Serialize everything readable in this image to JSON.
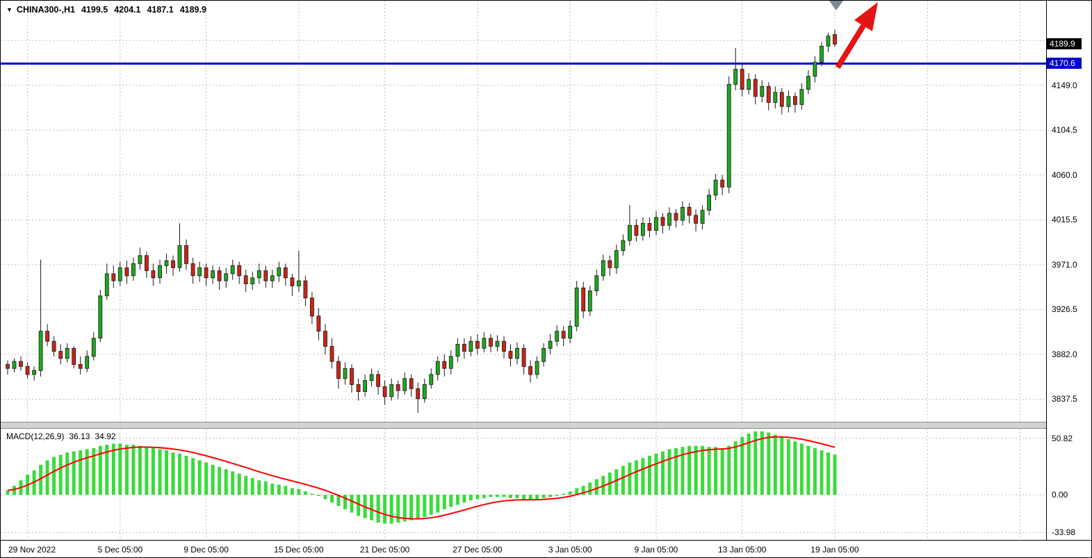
{
  "header": {
    "dropdown_icon": "▼",
    "symbol_period": "CHINA300-,H1",
    "open": "4199.5",
    "high": "4204.1",
    "low": "4187.1",
    "close": "4189.9"
  },
  "indicator_label": {
    "name": "MACD(12,26,9)",
    "macd": "36.13",
    "signal": "34.92"
  },
  "tags": {
    "current_price": "4189.9",
    "hline": "4170.6"
  },
  "colors": {
    "background": "#ffffff",
    "grid": "#bdbdbd",
    "candle_up": "#1fa81f",
    "candle_down": "#cc2418",
    "wick": "#161616",
    "macd_bar": "#3bdb3b",
    "signal_line": "#ff0000",
    "hline": "#0000cd",
    "price_tag_bg": "#000000",
    "arrow": "#e41414",
    "marker": "#7a8a99",
    "text": "#000000"
  },
  "chart_data": {
    "type": "candlestick",
    "title": "CHINA300-,H1",
    "symbol": "CHINA300-",
    "timeframe": "H1",
    "quote_ohlc": [
      4199.5,
      4204.1,
      4187.1,
      4189.9
    ],
    "current_price": 4189.9,
    "hline": 4170.6,
    "y_axis": {
      "tick_labels": [
        "4149.0",
        "4104.5",
        "4060.0",
        "4015.5",
        "3971.0",
        "3926.5",
        "3882.0",
        "3837.5"
      ],
      "tick_values": [
        4149.0,
        4104.5,
        4060.0,
        4015.5,
        3971.0,
        3926.5,
        3882.0,
        3837.5
      ],
      "extra_gridline": 4193.5
    },
    "x_axis": {
      "labels": [
        "29 Nov 2022",
        "5 Dec 05:00",
        "9 Dec 05:00",
        "15 Dec 05:00",
        "21 Dec 05:00",
        "27 Dec 05:00",
        "3 Jan 05:00",
        "9 Jan 05:00",
        "13 Jan 05:00",
        "19 Jan 05:00"
      ],
      "tick_indices": [
        3,
        17,
        30,
        44,
        57,
        71,
        85,
        98,
        111,
        125
      ],
      "extra_tick_indices": [
        139,
        153
      ]
    },
    "candles": [
      [
        3872,
        3876,
        3862,
        3868
      ],
      [
        3868,
        3878,
        3864,
        3875
      ],
      [
        3875,
        3880,
        3866,
        3870
      ],
      [
        3870,
        3874,
        3858,
        3862
      ],
      [
        3862,
        3870,
        3856,
        3866
      ],
      [
        3866,
        3976,
        3860,
        3905
      ],
      [
        3905,
        3912,
        3890,
        3895
      ],
      [
        3895,
        3900,
        3880,
        3885
      ],
      [
        3885,
        3892,
        3872,
        3878
      ],
      [
        3878,
        3893,
        3874,
        3888
      ],
      [
        3888,
        3890,
        3868,
        3872
      ],
      [
        3872,
        3880,
        3862,
        3868
      ],
      [
        3868,
        3886,
        3864,
        3880
      ],
      [
        3880,
        3904,
        3876,
        3898
      ],
      [
        3898,
        3946,
        3894,
        3940
      ],
      [
        3940,
        3972,
        3936,
        3962
      ],
      [
        3962,
        3970,
        3948,
        3955
      ],
      [
        3955,
        3974,
        3950,
        3968
      ],
      [
        3968,
        3975,
        3952,
        3960
      ],
      [
        3960,
        3978,
        3955,
        3972
      ],
      [
        3972,
        3988,
        3966,
        3980
      ],
      [
        3980,
        3984,
        3958,
        3965
      ],
      [
        3965,
        3972,
        3950,
        3958
      ],
      [
        3958,
        3976,
        3952,
        3970
      ],
      [
        3970,
        3982,
        3962,
        3975
      ],
      [
        3975,
        3980,
        3960,
        3968
      ],
      [
        3968,
        4012,
        3964,
        3990
      ],
      [
        3990,
        3996,
        3966,
        3972
      ],
      [
        3972,
        3978,
        3952,
        3960
      ],
      [
        3960,
        3974,
        3954,
        3968
      ],
      [
        3968,
        3972,
        3950,
        3958
      ],
      [
        3958,
        3970,
        3952,
        3965
      ],
      [
        3965,
        3969,
        3946,
        3955
      ],
      [
        3955,
        3968,
        3948,
        3962
      ],
      [
        3962,
        3976,
        3956,
        3970
      ],
      [
        3970,
        3974,
        3952,
        3960
      ],
      [
        3960,
        3966,
        3944,
        3952
      ],
      [
        3952,
        3964,
        3946,
        3958
      ],
      [
        3958,
        3972,
        3952,
        3965
      ],
      [
        3965,
        3970,
        3948,
        3955
      ],
      [
        3955,
        3966,
        3948,
        3960
      ],
      [
        3960,
        3974,
        3954,
        3968
      ],
      [
        3968,
        3972,
        3950,
        3958
      ],
      [
        3958,
        3962,
        3940,
        3950
      ],
      [
        3950,
        3985,
        3944,
        3955
      ],
      [
        3955,
        3960,
        3930,
        3938
      ],
      [
        3938,
        3944,
        3912,
        3920
      ],
      [
        3920,
        3928,
        3896,
        3905
      ],
      [
        3905,
        3912,
        3882,
        3890
      ],
      [
        3890,
        3898,
        3868,
        3875
      ],
      [
        3875,
        3880,
        3848,
        3858
      ],
      [
        3858,
        3874,
        3852,
        3868
      ],
      [
        3868,
        3872,
        3844,
        3852
      ],
      [
        3852,
        3858,
        3836,
        3845
      ],
      [
        3845,
        3862,
        3840,
        3856
      ],
      [
        3856,
        3868,
        3850,
        3862
      ],
      [
        3862,
        3866,
        3842,
        3850
      ],
      [
        3850,
        3856,
        3832,
        3840
      ],
      [
        3840,
        3858,
        3836,
        3852
      ],
      [
        3852,
        3856,
        3838,
        3846
      ],
      [
        3846,
        3864,
        3842,
        3858
      ],
      [
        3858,
        3862,
        3840,
        3848
      ],
      [
        3848,
        3854,
        3824,
        3838
      ],
      [
        3838,
        3858,
        3834,
        3852
      ],
      [
        3852,
        3868,
        3848,
        3862
      ],
      [
        3862,
        3880,
        3856,
        3875
      ],
      [
        3875,
        3882,
        3860,
        3868
      ],
      [
        3868,
        3886,
        3862,
        3880
      ],
      [
        3880,
        3898,
        3874,
        3892
      ],
      [
        3892,
        3898,
        3878,
        3885
      ],
      [
        3885,
        3900,
        3880,
        3895
      ],
      [
        3895,
        3902,
        3882,
        3888
      ],
      [
        3888,
        3904,
        3884,
        3898
      ],
      [
        3898,
        3902,
        3884,
        3890
      ],
      [
        3890,
        3901,
        3885,
        3895
      ],
      [
        3895,
        3900,
        3878,
        3885
      ],
      [
        3885,
        3892,
        3870,
        3878
      ],
      [
        3878,
        3894,
        3872,
        3888
      ],
      [
        3888,
        3892,
        3862,
        3870
      ],
      [
        3870,
        3876,
        3854,
        3862
      ],
      [
        3862,
        3880,
        3858,
        3875
      ],
      [
        3875,
        3893,
        3870,
        3888
      ],
      [
        3888,
        3902,
        3882,
        3895
      ],
      [
        3895,
        3911,
        3890,
        3905
      ],
      [
        3905,
        3910,
        3890,
        3898
      ],
      [
        3898,
        3916,
        3893,
        3910
      ],
      [
        3910,
        3955,
        3905,
        3948
      ],
      [
        3948,
        3954,
        3918,
        3925
      ],
      [
        3925,
        3950,
        3920,
        3945
      ],
      [
        3945,
        3966,
        3940,
        3960
      ],
      [
        3960,
        3981,
        3955,
        3975
      ],
      [
        3975,
        3980,
        3960,
        3968
      ],
      [
        3968,
        3991,
        3962,
        3985
      ],
      [
        3985,
        4001,
        3980,
        3995
      ],
      [
        3995,
        4030,
        3990,
        4010
      ],
      [
        4010,
        4016,
        3994,
        4000
      ],
      [
        4000,
        4018,
        3995,
        4012
      ],
      [
        4012,
        4018,
        3998,
        4005
      ],
      [
        4005,
        4024,
        4000,
        4018
      ],
      [
        4018,
        4022,
        4002,
        4010
      ],
      [
        4010,
        4028,
        4005,
        4022
      ],
      [
        4022,
        4026,
        4008,
        4015
      ],
      [
        4015,
        4034,
        4010,
        4028
      ],
      [
        4028,
        4032,
        4012,
        4020
      ],
      [
        4020,
        4026,
        4004,
        4012
      ],
      [
        4012,
        4030,
        4006,
        4025
      ],
      [
        4025,
        4046,
        4020,
        4040
      ],
      [
        4040,
        4061,
        4035,
        4055
      ],
      [
        4055,
        4060,
        4040,
        4048
      ],
      [
        4048,
        4158,
        4042,
        4150
      ],
      [
        4150,
        4186,
        4144,
        4165
      ],
      [
        4165,
        4170,
        4138,
        4145
      ],
      [
        4145,
        4161,
        4140,
        4155
      ],
      [
        4155,
        4160,
        4130,
        4138
      ],
      [
        4138,
        4154,
        4132,
        4148
      ],
      [
        4148,
        4152,
        4124,
        4132
      ],
      [
        4132,
        4148,
        4126,
        4142
      ],
      [
        4142,
        4146,
        4120,
        4128
      ],
      [
        4128,
        4144,
        4122,
        4138
      ],
      [
        4138,
        4142,
        4122,
        4130
      ],
      [
        4130,
        4151,
        4125,
        4145
      ],
      [
        4145,
        4164,
        4140,
        4158
      ],
      [
        4158,
        4178,
        4152,
        4172
      ],
      [
        4172,
        4192,
        4168,
        4188
      ],
      [
        4188,
        4201,
        4182,
        4198
      ],
      [
        4199.5,
        4204.1,
        4187.1,
        4189.9
      ]
    ],
    "indicator": {
      "name": "MACD",
      "params": [
        12,
        26,
        9
      ],
      "macd_value": 36.13,
      "signal_value": 34.92,
      "signal_smoothing": 9,
      "levels": {
        "labels": [
          "50.82",
          "0.00",
          "-33.98"
        ],
        "values": [
          50.82,
          0,
          -33.98
        ]
      },
      "histogram": [
        4,
        8,
        13,
        18,
        22,
        27,
        31,
        34,
        36,
        38,
        39,
        40,
        41,
        42,
        44,
        45,
        46,
        46,
        45,
        45,
        44,
        43,
        42,
        41,
        40,
        38,
        37,
        35,
        33,
        31,
        29,
        27,
        25,
        23,
        21,
        19,
        17,
        15,
        13,
        12,
        10,
        9,
        8,
        6,
        5,
        3,
        1,
        -1,
        -4,
        -7,
        -10,
        -13,
        -16,
        -19,
        -21,
        -23,
        -25,
        -26,
        -26,
        -25,
        -24,
        -23,
        -22,
        -20,
        -18,
        -16,
        -13,
        -11,
        -9,
        -7,
        -5,
        -4,
        -3,
        -2,
        -2,
        -2,
        -3,
        -3,
        -4,
        -5,
        -4,
        -3,
        -2,
        -1,
        1,
        3,
        6,
        8,
        11,
        14,
        17,
        20,
        23,
        26,
        29,
        31,
        33,
        35,
        37,
        39,
        41,
        42,
        43,
        44,
        44,
        44,
        43,
        43,
        42,
        44,
        48,
        52,
        55,
        57,
        57,
        56,
        54,
        52,
        50,
        48,
        46,
        44,
        42,
        40,
        38,
        36.13
      ]
    },
    "annotations": {
      "arrow": "red-up-arrow",
      "marker": "gray-down-triangle"
    }
  }
}
